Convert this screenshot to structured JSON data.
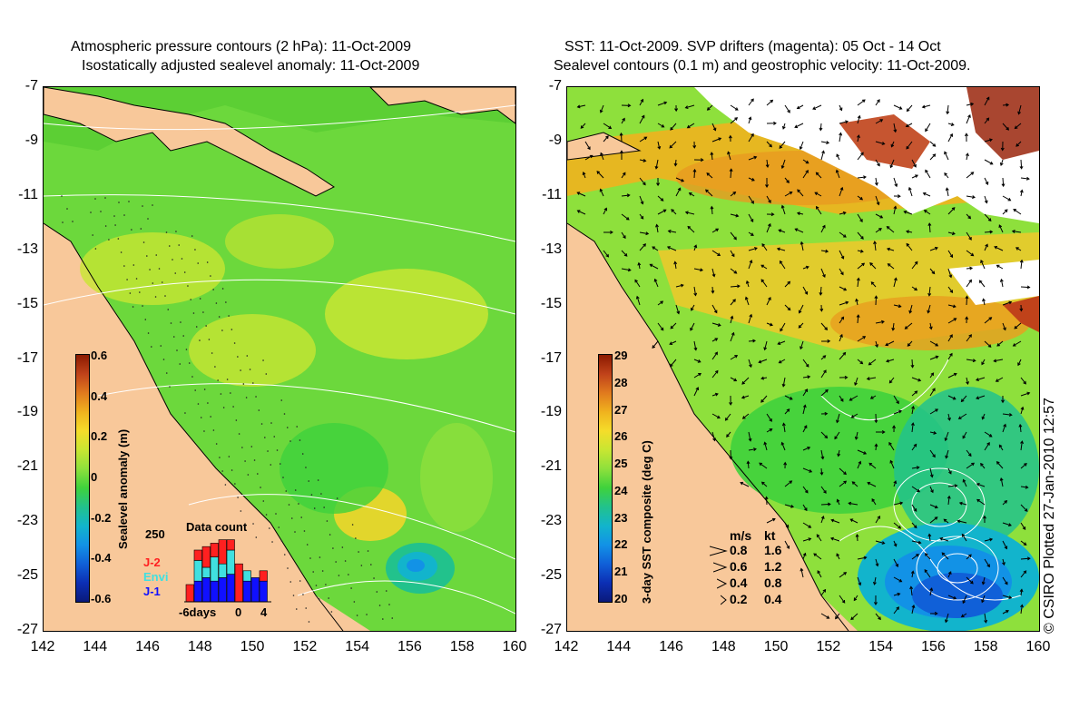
{
  "left": {
    "title_line1": "Atmospheric pressure contours (2 hPa): 11-Oct-2009",
    "title_line2": "Isostatically adjusted sealevel anomaly: 11-Oct-2009",
    "colorbar": {
      "title": "Sealevel anomaly (m)",
      "ticks": [
        "0.6",
        "0.4",
        "0.2",
        "0",
        "-0.2",
        "-0.4",
        "-0.6"
      ],
      "colors": [
        "#8b1a00",
        "#c0421a",
        "#e07a1e",
        "#f0b21e",
        "#f5dd2a",
        "#c8e632",
        "#8ee03c",
        "#3fd23c",
        "#22c28c",
        "#12b4cc",
        "#1292e6",
        "#1060d8",
        "#0c2fb4",
        "#0a1a7a"
      ]
    },
    "data_count": {
      "title": "Data count",
      "max_label": "250",
      "x_labels": [
        "-6days",
        "0",
        "4"
      ],
      "legend": [
        {
          "label": "J-2",
          "color": "#ff2020"
        },
        {
          "label": "Envi",
          "color": "#40e0e0"
        },
        {
          "label": "J-1",
          "color": "#1010ff"
        }
      ],
      "bars": [
        {
          "j1": 0,
          "envi": 0,
          "j2": 0.25
        },
        {
          "j1": 0.3,
          "envi": 0.3,
          "j2": 0.15
        },
        {
          "j1": 0.35,
          "envi": 0.15,
          "j2": 0.3
        },
        {
          "j1": 0.3,
          "envi": 0.35,
          "j2": 0.2
        },
        {
          "j1": 0.35,
          "envi": 0.2,
          "j2": 0.35
        },
        {
          "j1": 0.4,
          "envi": 0.35,
          "j2": 0.15
        },
        {
          "j1": 0,
          "envi": 0,
          "j2": 0.55
        },
        {
          "j1": 0.3,
          "envi": 0.15,
          "j2": 0
        },
        {
          "j1": 0.35,
          "envi": 0,
          "j2": 0
        },
        {
          "j1": 0.3,
          "envi": 0,
          "j2": 0.15
        }
      ]
    }
  },
  "right": {
    "title_line1": "SST: 11-Oct-2009. SVP drifters (magenta): 05 Oct - 14 Oct",
    "title_line2": "Sealevel contours (0.1 m) and geostrophic velocity: 11-Oct-2009.",
    "colorbar": {
      "title": "3-day SST composite (deg C)",
      "ticks": [
        "29",
        "28",
        "27",
        "26",
        "25",
        "24",
        "23",
        "22",
        "21",
        "20"
      ],
      "colors": [
        "#8b1a00",
        "#c0421a",
        "#e07a1e",
        "#f0b21e",
        "#f5dd2a",
        "#c8e632",
        "#8ee03c",
        "#3fd23c",
        "#22c28c",
        "#12b4cc",
        "#1292e6",
        "#1060d8",
        "#0c2fb4",
        "#0a1a7a"
      ]
    },
    "velocity_legend": {
      "header_ms": "m/s",
      "header_kt": "kt",
      "rows": [
        {
          "ms": "0.8",
          "kt": "1.6"
        },
        {
          "ms": "0.6",
          "kt": "1.2"
        },
        {
          "ms": "0.4",
          "kt": "0.8"
        },
        {
          "ms": "0.2",
          "kt": "0.4"
        }
      ]
    }
  },
  "axes": {
    "y_labels": [
      "-7",
      "-9",
      "-11",
      "-13",
      "-15",
      "-17",
      "-19",
      "-21",
      "-23",
      "-25",
      "-27"
    ],
    "x_labels": [
      "142",
      "144",
      "146",
      "148",
      "150",
      "152",
      "154",
      "156",
      "158",
      "160"
    ]
  },
  "copyright": "© CSIRO Plotted 27-Jan-2010 12:57",
  "colors": {
    "land": "#f8c89a",
    "ocean_green": "#6cd83c",
    "ocean_yellow": "#c8e632",
    "ocean_blue": "#1292e6",
    "cloud": "#ffffff"
  }
}
